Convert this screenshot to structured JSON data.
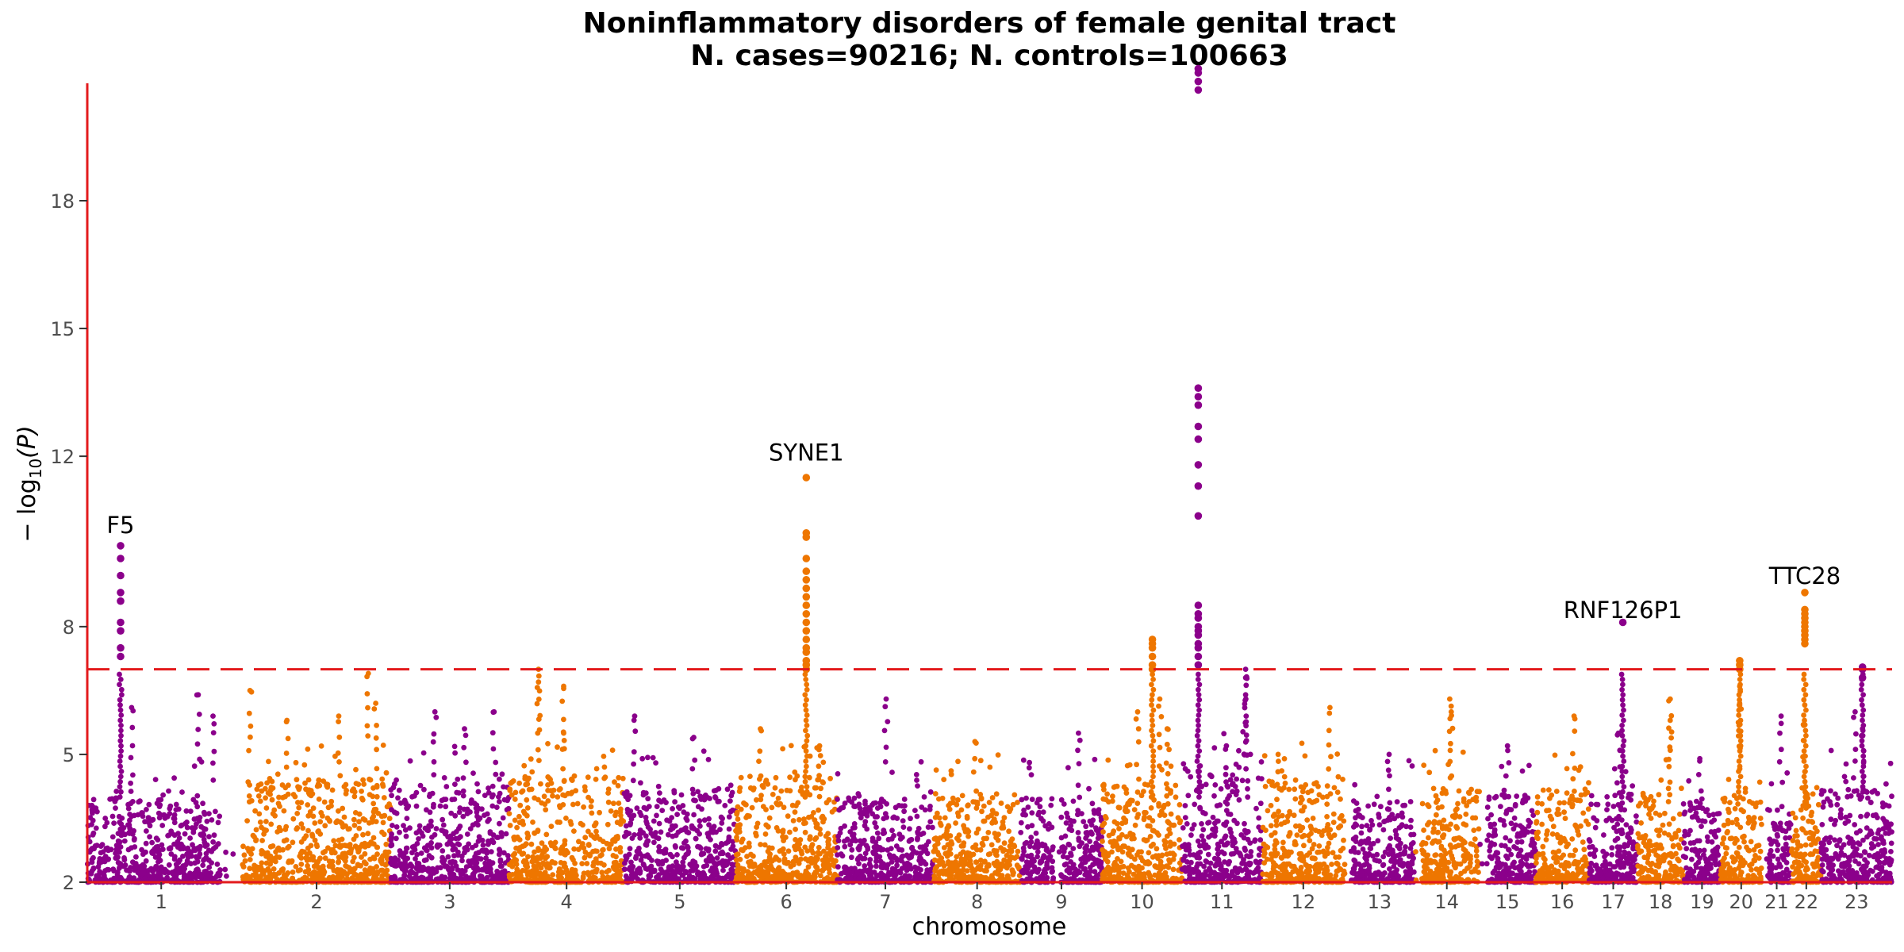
{
  "colors": {
    "odd": "#8B008B",
    "even": "#EE7600",
    "axis": "#E31A1C",
    "threshold": "#E31A1C"
  },
  "chart_data": {
    "type": "scatter",
    "title": "Noninflammatory disorders of female genital tract",
    "subtitle": "N. cases=90216; N. controls=100663",
    "xlabel": "chromosome",
    "ylabel_main": "− log",
    "ylabel_sub": "10",
    "ylabel_tail": "(P)",
    "ylim": [
      2,
      20.6
    ],
    "yticks": [
      2,
      5,
      8,
      12,
      15,
      18
    ],
    "ytick_labels": [
      "2",
      "5",
      "8",
      "12",
      "15",
      "18"
    ],
    "threshold": 7.0,
    "grid": false,
    "chromosomes": [
      {
        "label": "1",
        "span": [
          0.0,
          1.0
        ],
        "gap": [
          0.9,
          1.05
        ],
        "peak": 3.8,
        "hits": [
          [
            0.3,
            6.1
          ],
          [
            0.75,
            6.4
          ],
          [
            0.85,
            5.9
          ]
        ]
      },
      {
        "label": "2",
        "span": [
          1.05,
          2.05
        ],
        "peak": 4.2,
        "hits": [
          [
            1.1,
            6.5
          ],
          [
            1.35,
            5.8
          ],
          [
            1.7,
            5.9
          ],
          [
            1.9,
            6.9
          ],
          [
            1.95,
            6.2
          ]
        ]
      },
      {
        "label": "3",
        "span": [
          2.05,
          2.85
        ],
        "peak": 4.1,
        "hits": [
          [
            2.35,
            6.0
          ],
          [
            2.75,
            6.0
          ],
          [
            2.55,
            5.6
          ]
        ]
      },
      {
        "label": "4",
        "span": [
          2.85,
          3.63
        ],
        "peak": 4.3,
        "hits": [
          [
            3.05,
            7.0
          ],
          [
            3.05,
            6.7
          ],
          [
            3.22,
            6.6
          ],
          [
            3.22,
            5.5
          ]
        ]
      },
      {
        "label": "5",
        "span": [
          3.63,
          4.38
        ],
        "peak": 4.0,
        "hits": [
          [
            3.7,
            5.9
          ],
          [
            4.1,
            5.4
          ]
        ]
      },
      {
        "label": "6",
        "span": [
          4.38,
          5.07
        ],
        "peak": 4.3,
        "hits": [
          [
            4.55,
            5.6
          ],
          [
            4.95,
            5.2
          ]
        ]
      },
      {
        "label": "7",
        "span": [
          5.07,
          5.72
        ],
        "peak": 3.8,
        "hits": [
          [
            5.4,
            6.3
          ]
        ]
      },
      {
        "label": "8",
        "span": [
          5.72,
          6.31
        ],
        "peak": 3.9,
        "hits": [
          [
            6.0,
            5.3
          ]
        ]
      },
      {
        "label": "9",
        "span": [
          6.31,
          6.86
        ],
        "gap": [
          6.53,
          6.58
        ],
        "peak": 3.8,
        "hits": [
          [
            6.7,
            5.5
          ]
        ]
      },
      {
        "label": "10",
        "span": [
          6.86,
          7.4
        ],
        "peak": 4.1,
        "hits": [
          [
            7.1,
            6.0
          ],
          [
            7.25,
            6.3
          ],
          [
            7.3,
            5.6
          ]
        ]
      },
      {
        "label": "11",
        "span": [
          7.4,
          7.94
        ],
        "peak": 4.6,
        "hits": [
          [
            7.83,
            7.0
          ],
          [
            7.83,
            6.8
          ],
          [
            7.83,
            6.4
          ],
          [
            7.7,
            5.2
          ]
        ]
      },
      {
        "label": "12",
        "span": [
          7.94,
          8.5
        ],
        "peak": 4.2,
        "hits": [
          [
            8.4,
            6.1
          ],
          [
            8.05,
            5.0
          ]
        ]
      },
      {
        "label": "13",
        "span": [
          8.5,
          8.97
        ],
        "gap": [
          8.5,
          8.55
        ],
        "peak": 3.8,
        "hits": [
          [
            8.8,
            5.0
          ]
        ]
      },
      {
        "label": "14",
        "span": [
          8.97,
          9.41
        ],
        "gap": [
          8.97,
          9.02
        ],
        "peak": 4.0,
        "hits": [
          [
            9.21,
            6.3
          ],
          [
            9.22,
            6.0
          ]
        ]
      },
      {
        "label": "15",
        "span": [
          9.41,
          9.79
        ],
        "gap": [
          9.41,
          9.46
        ],
        "peak": 3.9,
        "hits": [
          [
            9.6,
            5.2
          ]
        ]
      },
      {
        "label": "16",
        "span": [
          9.79,
          10.15
        ],
        "peak": 4.0,
        "hits": [
          [
            10.05,
            5.9
          ]
        ]
      },
      {
        "label": "17",
        "span": [
          10.15,
          10.48
        ],
        "peak": 3.9,
        "hits": [
          [
            10.35,
            5.5
          ]
        ]
      },
      {
        "label": "18",
        "span": [
          10.48,
          10.79
        ],
        "peak": 3.9,
        "hits": [
          [
            10.7,
            6.3
          ],
          [
            10.7,
            5.8
          ]
        ]
      },
      {
        "label": "19",
        "span": [
          10.79,
          11.04
        ],
        "peak": 3.7,
        "hits": [
          [
            10.9,
            4.9
          ]
        ]
      },
      {
        "label": "20",
        "span": [
          11.04,
          11.32
        ],
        "peak": 3.9,
        "hits": [
          [
            11.17,
            6.6
          ],
          [
            11.17,
            6.2
          ]
        ]
      },
      {
        "label": "21",
        "span": [
          11.32,
          11.52
        ],
        "gap": [
          11.32,
          11.36
        ],
        "peak": 3.7,
        "hits": [
          [
            11.45,
            5.9
          ]
        ]
      },
      {
        "label": "22",
        "span": [
          11.52,
          11.72
        ],
        "peak": 3.9,
        "hits": [
          [
            11.6,
            5.7
          ]
        ]
      },
      {
        "label": "23",
        "span": [
          11.72,
          12.2
        ],
        "peak": 4.0,
        "hits": [
          [
            11.95,
            6.0
          ],
          [
            12.0,
            5.6
          ]
        ]
      }
    ],
    "loci": [
      {
        "x": 0.225,
        "values": [
          7.3,
          7.5,
          7.9,
          8.1,
          8.6,
          8.8,
          9.2,
          9.6,
          9.9
        ]
      },
      {
        "x": 4.86,
        "values": [
          7.0,
          7.1,
          7.2,
          7.4,
          7.5,
          7.7,
          7.9,
          8.1,
          8.3,
          8.5,
          8.7,
          8.9,
          9.1,
          9.3,
          9.6,
          10.1,
          10.2,
          11.5
        ]
      },
      {
        "x": 7.2,
        "values": [
          7.0,
          7.1,
          7.3,
          7.5,
          7.6,
          7.7
        ]
      },
      {
        "x": 7.51,
        "values": [
          7.1,
          7.3,
          7.5,
          7.6,
          7.8,
          7.9,
          8.0,
          8.2,
          8.3,
          8.5,
          10.6,
          11.3,
          11.8,
          12.4,
          12.7,
          13.2,
          13.4,
          13.6,
          20.6,
          20.8,
          21.0,
          21.1
        ]
      },
      {
        "x": 10.38,
        "values": [
          8.1
        ]
      },
      {
        "x": 11.17,
        "values": [
          7.0,
          7.1,
          7.2
        ]
      },
      {
        "x": 11.61,
        "values": [
          7.6,
          7.7,
          7.8,
          7.9,
          8.0,
          8.1,
          8.2,
          8.3,
          8.4,
          8.8
        ]
      },
      {
        "x": 12.0,
        "values": [
          6.8,
          7.0,
          7.05
        ]
      }
    ],
    "annotations": [
      {
        "label": "F5",
        "x": 0.225,
        "y": 10.2
      },
      {
        "label": "SYNE1",
        "x": 4.86,
        "y": 11.9
      },
      {
        "label": "RNF126P1",
        "x": 10.38,
        "y": 8.2
      },
      {
        "label": "TTC28",
        "x": 11.61,
        "y": 9.0
      }
    ]
  }
}
